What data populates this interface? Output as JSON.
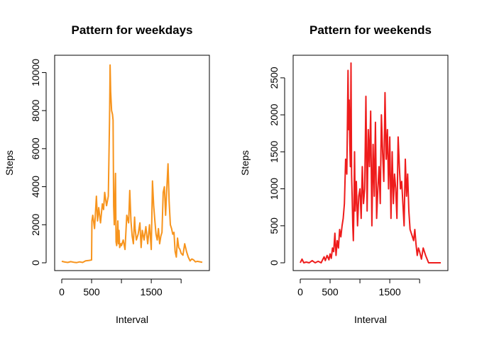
{
  "chart_data": [
    {
      "type": "line",
      "title": "Pattern for weekdays",
      "xlabel": "Interval",
      "ylabel": "Steps",
      "xlim": [
        0,
        2355
      ],
      "ylim": [
        0,
        10500
      ],
      "x_ticks": [
        0,
        500,
        1000,
        1500,
        2000
      ],
      "x_tick_labels": [
        "0",
        "500",
        "",
        "1500",
        ""
      ],
      "y_ticks": [
        0,
        2000,
        4000,
        6000,
        8000,
        10000
      ],
      "y_tick_labels": [
        "0",
        "2000",
        "4000",
        "6000",
        "8000",
        "10000"
      ],
      "color": "#F7941D",
      "grid": false,
      "series": [
        {
          "x": [
            0,
            50,
            100,
            150,
            200,
            250,
            300,
            350,
            400,
            450,
            500,
            505,
            520,
            550,
            580,
            600,
            620,
            650,
            680,
            700,
            720,
            750,
            780,
            800,
            805,
            810,
            820,
            835,
            850,
            860,
            870,
            880,
            900,
            910,
            920,
            930,
            940,
            950,
            960,
            970,
            990,
            1000,
            1030,
            1060,
            1090,
            1120,
            1140,
            1160,
            1180,
            1200,
            1220,
            1230,
            1250,
            1280,
            1310,
            1330,
            1350,
            1380,
            1410,
            1440,
            1470,
            1500,
            1520,
            1540,
            1560,
            1580,
            1600,
            1620,
            1640,
            1660,
            1680,
            1700,
            1720,
            1740,
            1760,
            1780,
            1800,
            1820,
            1840,
            1860,
            1880,
            1900,
            1920,
            1940,
            1960,
            1980,
            2000,
            2030,
            2060,
            2090,
            2120,
            2150,
            2180,
            2210,
            2240,
            2270,
            2300,
            2330,
            2355
          ],
          "y": [
            80,
            40,
            20,
            60,
            30,
            10,
            50,
            20,
            100,
            120,
            150,
            2200,
            2500,
            1800,
            3500,
            2200,
            2900,
            2100,
            3100,
            2800,
            3700,
            3000,
            3500,
            7500,
            8800,
            10400,
            9000,
            8000,
            7800,
            7500,
            3000,
            2000,
            4700,
            1100,
            900,
            1400,
            2200,
            1000,
            1700,
            800,
            1000,
            900,
            1200,
            700,
            2500,
            2100,
            3800,
            2200,
            1400,
            1000,
            2400,
            1800,
            1200,
            1500,
            2100,
            800,
            1700,
            1200,
            1900,
            1000,
            2000,
            700,
            4300,
            3000,
            2200,
            1500,
            1200,
            1800,
            1000,
            1400,
            1600,
            3700,
            4000,
            2500,
            3900,
            5200,
            3200,
            2000,
            1800,
            1500,
            1600,
            600,
            300,
            1300,
            800,
            700,
            500,
            400,
            1000,
            600,
            300,
            100,
            200,
            150,
            50,
            80,
            60,
            40,
            30
          ],
          "name": ""
        }
      ]
    },
    {
      "type": "line",
      "title": "Pattern for weekends",
      "xlabel": "Interval",
      "ylabel": "Steps",
      "xlim": [
        0,
        2355
      ],
      "ylim": [
        0,
        2700
      ],
      "x_ticks": [
        0,
        500,
        1000,
        1500,
        2000
      ],
      "x_tick_labels": [
        "0",
        "500",
        "",
        "1500",
        ""
      ],
      "y_ticks": [
        0,
        500,
        1000,
        1500,
        2000,
        2500
      ],
      "y_tick_labels": [
        "0",
        "500",
        "1000",
        "1500",
        "2000",
        "2500"
      ],
      "color": "#EE1C1C",
      "grid": false,
      "series": [
        {
          "x": [
            0,
            30,
            60,
            100,
            150,
            200,
            250,
            300,
            350,
            400,
            420,
            450,
            480,
            500,
            520,
            540,
            560,
            580,
            600,
            620,
            640,
            660,
            680,
            700,
            720,
            740,
            760,
            780,
            800,
            810,
            820,
            830,
            840,
            850,
            860,
            870,
            880,
            890,
            900,
            910,
            920,
            930,
            940,
            960,
            980,
            1000,
            1020,
            1040,
            1060,
            1080,
            1100,
            1120,
            1140,
            1160,
            1180,
            1200,
            1220,
            1240,
            1260,
            1280,
            1300,
            1320,
            1340,
            1360,
            1380,
            1400,
            1420,
            1440,
            1460,
            1480,
            1500,
            1520,
            1540,
            1560,
            1580,
            1600,
            1620,
            1640,
            1660,
            1680,
            1700,
            1720,
            1740,
            1760,
            1780,
            1800,
            1820,
            1840,
            1860,
            1880,
            1900,
            1920,
            1940,
            1960,
            1980,
            2000,
            2030,
            2060,
            2100,
            2150,
            2200,
            2250,
            2300,
            2355
          ],
          "y": [
            0,
            50,
            0,
            10,
            0,
            30,
            0,
            20,
            0,
            80,
            30,
            100,
            40,
            120,
            60,
            200,
            150,
            400,
            100,
            300,
            200,
            450,
            350,
            500,
            600,
            800,
            1400,
            1200,
            2600,
            1800,
            2200,
            1600,
            1300,
            2700,
            1200,
            900,
            500,
            300,
            800,
            1500,
            700,
            900,
            1100,
            500,
            900,
            1000,
            600,
            1300,
            800,
            1000,
            2250,
            700,
            1800,
            1300,
            2050,
            500,
            1600,
            900,
            1900,
            600,
            1000,
            1300,
            800,
            2000,
            1500,
            1100,
            2300,
            1400,
            1800,
            1000,
            1700,
            600,
            1500,
            800,
            1200,
            1000,
            600,
            1700,
            1300,
            1000,
            1100,
            800,
            500,
            1400,
            900,
            1200,
            700,
            450,
            400,
            350,
            300,
            450,
            250,
            100,
            200,
            150,
            50,
            200,
            100,
            0,
            0,
            0,
            0,
            0
          ],
          "name": ""
        }
      ]
    }
  ]
}
